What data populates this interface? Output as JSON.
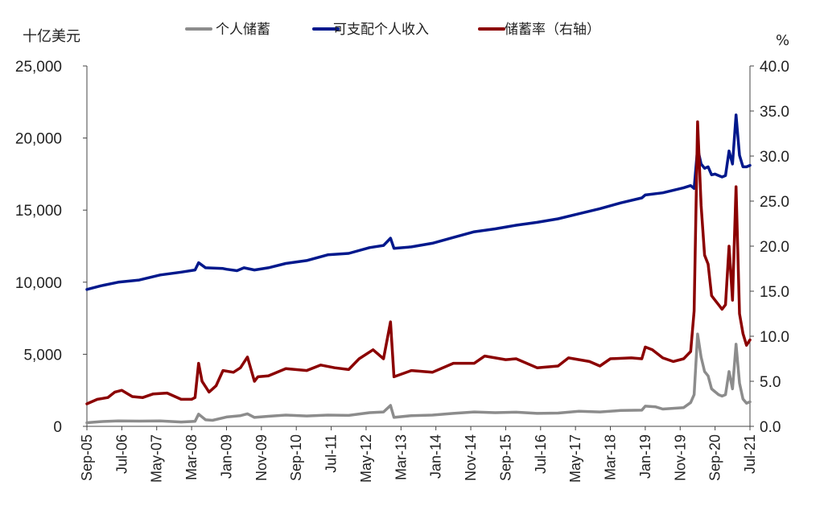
{
  "chart_data": {
    "type": "line",
    "left_axis_unit": "十亿美元",
    "right_axis_unit": "%",
    "left_ylim": [
      0,
      25000
    ],
    "right_ylim": [
      0,
      40
    ],
    "left_yticks": [
      0,
      5000,
      10000,
      15000,
      20000,
      25000
    ],
    "left_ytick_labels": [
      "0",
      "5,000",
      "10,000",
      "15,000",
      "20,000",
      "25,000"
    ],
    "right_yticks": [
      0,
      5,
      10,
      15,
      20,
      25,
      30,
      35,
      40
    ],
    "right_ytick_labels": [
      "0.0",
      "5.0",
      "10.0",
      "15.0",
      "20.0",
      "25.0",
      "30.0",
      "35.0",
      "40.0"
    ],
    "x_start": "2005-09",
    "x_end": "2021-07",
    "x_ticks": [
      "2005-09",
      "2006-07",
      "2007-05",
      "2008-03",
      "2009-01",
      "2009-11",
      "2010-09",
      "2011-07",
      "2012-05",
      "2013-03",
      "2014-01",
      "2014-11",
      "2015-09",
      "2016-07",
      "2017-05",
      "2018-03",
      "2019-01",
      "2019-11",
      "2020-09",
      "2021-07"
    ],
    "x_tick_labels": [
      "Sep-05",
      "Jul-06",
      "May-07",
      "Mar-08",
      "Jan-09",
      "Nov-09",
      "Sep-10",
      "Jul-11",
      "May-12",
      "Mar-13",
      "Jan-14",
      "Nov-14",
      "Sep-15",
      "Jul-16",
      "May-17",
      "Mar-18",
      "Jan-19",
      "Nov-19",
      "Sep-20",
      "Jul-21"
    ],
    "legend_position": "top",
    "grid": false,
    "series": [
      {
        "name": "个人储蓄",
        "axis": "left",
        "color": "#8c8c8c",
        "points": [
          [
            "2005-09",
            250
          ],
          [
            "2006-01",
            330
          ],
          [
            "2006-06",
            380
          ],
          [
            "2006-12",
            360
          ],
          [
            "2007-06",
            380
          ],
          [
            "2007-12",
            300
          ],
          [
            "2008-04",
            350
          ],
          [
            "2008-05",
            850
          ],
          [
            "2008-07",
            450
          ],
          [
            "2008-09",
            420
          ],
          [
            "2009-01",
            650
          ],
          [
            "2009-05",
            740
          ],
          [
            "2009-07",
            870
          ],
          [
            "2009-09",
            620
          ],
          [
            "2010-01",
            700
          ],
          [
            "2010-06",
            780
          ],
          [
            "2010-12",
            720
          ],
          [
            "2011-06",
            780
          ],
          [
            "2011-12",
            760
          ],
          [
            "2012-06",
            950
          ],
          [
            "2012-10",
            1000
          ],
          [
            "2012-12",
            1450
          ],
          [
            "2013-01",
            620
          ],
          [
            "2013-06",
            740
          ],
          [
            "2013-12",
            780
          ],
          [
            "2014-06",
            900
          ],
          [
            "2014-12",
            1000
          ],
          [
            "2015-06",
            950
          ],
          [
            "2015-12",
            980
          ],
          [
            "2016-06",
            900
          ],
          [
            "2016-12",
            920
          ],
          [
            "2017-06",
            1050
          ],
          [
            "2017-12",
            1000
          ],
          [
            "2018-06",
            1100
          ],
          [
            "2018-12",
            1120
          ],
          [
            "2019-01",
            1400
          ],
          [
            "2019-04",
            1350
          ],
          [
            "2019-06",
            1200
          ],
          [
            "2019-12",
            1300
          ],
          [
            "2020-02",
            1650
          ],
          [
            "2020-03",
            2200
          ],
          [
            "2020-04",
            6400
          ],
          [
            "2020-05",
            4800
          ],
          [
            "2020-06",
            3800
          ],
          [
            "2020-07",
            3500
          ],
          [
            "2020-08",
            2600
          ],
          [
            "2020-09",
            2400
          ],
          [
            "2020-10",
            2200
          ],
          [
            "2020-11",
            2100
          ],
          [
            "2020-12",
            2200
          ],
          [
            "2021-01",
            3800
          ],
          [
            "2021-02",
            2600
          ],
          [
            "2021-03",
            5700
          ],
          [
            "2021-04",
            3000
          ],
          [
            "2021-05",
            1900
          ],
          [
            "2021-06",
            1600
          ],
          [
            "2021-07",
            1700
          ]
        ]
      },
      {
        "name": "可支配个人收入",
        "axis": "left",
        "color": "#00188c",
        "points": [
          [
            "2005-09",
            9500
          ],
          [
            "2006-01",
            9750
          ],
          [
            "2006-06",
            10000
          ],
          [
            "2006-12",
            10150
          ],
          [
            "2007-06",
            10500
          ],
          [
            "2007-12",
            10700
          ],
          [
            "2008-04",
            10850
          ],
          [
            "2008-05",
            11350
          ],
          [
            "2008-07",
            11000
          ],
          [
            "2008-12",
            10950
          ],
          [
            "2009-01",
            10900
          ],
          [
            "2009-04",
            10800
          ],
          [
            "2009-06",
            11000
          ],
          [
            "2009-09",
            10850
          ],
          [
            "2010-01",
            11000
          ],
          [
            "2010-06",
            11300
          ],
          [
            "2010-12",
            11500
          ],
          [
            "2011-06",
            11900
          ],
          [
            "2011-12",
            12000
          ],
          [
            "2012-06",
            12400
          ],
          [
            "2012-10",
            12550
          ],
          [
            "2012-12",
            13050
          ],
          [
            "2013-01",
            12350
          ],
          [
            "2013-06",
            12450
          ],
          [
            "2013-12",
            12700
          ],
          [
            "2014-06",
            13100
          ],
          [
            "2014-12",
            13500
          ],
          [
            "2015-06",
            13700
          ],
          [
            "2015-12",
            13950
          ],
          [
            "2016-06",
            14150
          ],
          [
            "2016-12",
            14400
          ],
          [
            "2017-06",
            14750
          ],
          [
            "2017-12",
            15100
          ],
          [
            "2018-06",
            15500
          ],
          [
            "2018-12",
            15850
          ],
          [
            "2019-01",
            16050
          ],
          [
            "2019-06",
            16200
          ],
          [
            "2019-12",
            16550
          ],
          [
            "2020-02",
            16700
          ],
          [
            "2020-03",
            16500
          ],
          [
            "2020-04",
            19300
          ],
          [
            "2020-05",
            18200
          ],
          [
            "2020-06",
            17900
          ],
          [
            "2020-07",
            18000
          ],
          [
            "2020-08",
            17450
          ],
          [
            "2020-09",
            17500
          ],
          [
            "2020-10",
            17400
          ],
          [
            "2020-11",
            17300
          ],
          [
            "2020-12",
            17400
          ],
          [
            "2021-01",
            19100
          ],
          [
            "2021-02",
            18200
          ],
          [
            "2021-03",
            21600
          ],
          [
            "2021-04",
            18800
          ],
          [
            "2021-05",
            18000
          ],
          [
            "2021-06",
            18000
          ],
          [
            "2021-07",
            18100
          ]
        ]
      },
      {
        "name": "储蓄率（右轴）",
        "axis": "right",
        "color": "#8b0000",
        "points": [
          [
            "2005-09",
            2.5
          ],
          [
            "2005-12",
            3.0
          ],
          [
            "2006-03",
            3.2
          ],
          [
            "2006-05",
            3.8
          ],
          [
            "2006-07",
            4.0
          ],
          [
            "2006-10",
            3.3
          ],
          [
            "2007-01",
            3.2
          ],
          [
            "2007-04",
            3.6
          ],
          [
            "2007-08",
            3.7
          ],
          [
            "2007-12",
            3.0
          ],
          [
            "2008-03",
            3.0
          ],
          [
            "2008-04",
            3.2
          ],
          [
            "2008-05",
            7.0
          ],
          [
            "2008-06",
            5.0
          ],
          [
            "2008-08",
            3.8
          ],
          [
            "2008-10",
            4.5
          ],
          [
            "2008-12",
            6.2
          ],
          [
            "2009-03",
            6.0
          ],
          [
            "2009-05",
            6.5
          ],
          [
            "2009-07",
            7.7
          ],
          [
            "2009-09",
            5.0
          ],
          [
            "2009-10",
            5.5
          ],
          [
            "2010-01",
            5.6
          ],
          [
            "2010-06",
            6.4
          ],
          [
            "2010-12",
            6.2
          ],
          [
            "2011-04",
            6.8
          ],
          [
            "2011-08",
            6.5
          ],
          [
            "2011-12",
            6.3
          ],
          [
            "2012-03",
            7.5
          ],
          [
            "2012-07",
            8.5
          ],
          [
            "2012-10",
            7.5
          ],
          [
            "2012-12",
            11.6
          ],
          [
            "2013-01",
            5.5
          ],
          [
            "2013-06",
            6.2
          ],
          [
            "2013-12",
            6.0
          ],
          [
            "2014-06",
            7.0
          ],
          [
            "2014-12",
            7.0
          ],
          [
            "2015-03",
            7.8
          ],
          [
            "2015-09",
            7.4
          ],
          [
            "2015-12",
            7.5
          ],
          [
            "2016-06",
            6.5
          ],
          [
            "2016-12",
            6.7
          ],
          [
            "2017-03",
            7.6
          ],
          [
            "2017-09",
            7.2
          ],
          [
            "2017-12",
            6.7
          ],
          [
            "2018-03",
            7.5
          ],
          [
            "2018-09",
            7.6
          ],
          [
            "2018-12",
            7.5
          ],
          [
            "2019-01",
            8.8
          ],
          [
            "2019-03",
            8.5
          ],
          [
            "2019-06",
            7.6
          ],
          [
            "2019-09",
            7.2
          ],
          [
            "2019-12",
            7.5
          ],
          [
            "2020-02",
            8.3
          ],
          [
            "2020-03",
            12.8
          ],
          [
            "2020-04",
            33.8
          ],
          [
            "2020-05",
            24.5
          ],
          [
            "2020-06",
            19.0
          ],
          [
            "2020-07",
            18.0
          ],
          [
            "2020-08",
            14.5
          ],
          [
            "2020-09",
            14.0
          ],
          [
            "2020-10",
            13.5
          ],
          [
            "2020-11",
            13.0
          ],
          [
            "2020-12",
            13.5
          ],
          [
            "2021-01",
            20.0
          ],
          [
            "2021-02",
            14.0
          ],
          [
            "2021-03",
            26.6
          ],
          [
            "2021-04",
            12.5
          ],
          [
            "2021-05",
            10.3
          ],
          [
            "2021-06",
            9.0
          ],
          [
            "2021-07",
            9.6
          ]
        ]
      }
    ]
  }
}
